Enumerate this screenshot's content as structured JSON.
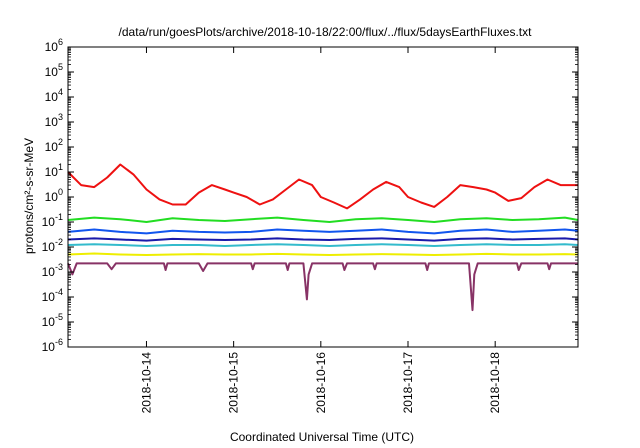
{
  "chart_data": {
    "type": "line",
    "title": "/data/run/goesPlots/archive/2018-10-18/22:00/flux/../flux/5daysEarthFluxes.txt",
    "xlabel": "Coordinated Universal Time (UTC)",
    "ylabel": "protons/cm²-s-sr-MeV",
    "yscale": "log",
    "ylim_exp": [
      -6,
      6
    ],
    "xlim_days": [
      13.1,
      18.95
    ],
    "x_ticks": [
      {
        "day": 14,
        "label": "2018-10-14"
      },
      {
        "day": 15,
        "label": "2018-10-15"
      },
      {
        "day": 16,
        "label": "2018-10-16"
      },
      {
        "day": 17,
        "label": "2018-10-17"
      },
      {
        "day": 18,
        "label": "2018-10-18"
      }
    ],
    "y_ticks": [
      {
        "exp": -6,
        "base": "10",
        "sup": "-6"
      },
      {
        "exp": -5,
        "base": "10",
        "sup": "-5"
      },
      {
        "exp": -4,
        "base": "10",
        "sup": "-4"
      },
      {
        "exp": -3,
        "base": "10",
        "sup": "-3"
      },
      {
        "exp": -2,
        "base": "10",
        "sup": "-2"
      },
      {
        "exp": -1,
        "base": "10",
        "sup": "-1"
      },
      {
        "exp": 0,
        "base": "10",
        "sup": "0"
      },
      {
        "exp": 1,
        "base": "10",
        "sup": "1"
      },
      {
        "exp": 2,
        "base": "10",
        "sup": "2"
      },
      {
        "exp": 3,
        "base": "10",
        "sup": "3"
      },
      {
        "exp": 4,
        "base": "10",
        "sup": "4"
      },
      {
        "exp": 5,
        "base": "10",
        "sup": "5"
      },
      {
        "exp": 6,
        "base": "10",
        "sup": "6"
      }
    ],
    "grid": false,
    "series": [
      {
        "color": "#ee1111",
        "x": [
          13.1,
          13.25,
          13.4,
          13.55,
          13.7,
          13.85,
          14.0,
          14.15,
          14.3,
          14.45,
          14.6,
          14.75,
          14.9,
          15.0,
          15.15,
          15.3,
          15.45,
          15.6,
          15.75,
          15.9,
          16.0,
          16.15,
          16.3,
          16.45,
          16.6,
          16.75,
          16.9,
          17.0,
          17.15,
          17.3,
          17.45,
          17.6,
          17.75,
          17.9,
          18.0,
          18.15,
          18.3,
          18.45,
          18.6,
          18.75,
          18.95
        ],
        "y": [
          10,
          3,
          2.5,
          6,
          20,
          8,
          2,
          0.8,
          0.5,
          0.5,
          1.5,
          3,
          2,
          1.5,
          1,
          0.5,
          0.8,
          2,
          5,
          3,
          1,
          0.6,
          0.35,
          0.8,
          2,
          4,
          2.5,
          1,
          0.6,
          0.4,
          1,
          3,
          2.5,
          2,
          1.5,
          0.7,
          0.9,
          2.5,
          5,
          3,
          3
        ]
      },
      {
        "color": "#22dd22",
        "x": [
          13.1,
          13.4,
          13.7,
          14.0,
          14.3,
          14.6,
          14.9,
          15.2,
          15.5,
          15.8,
          16.1,
          16.4,
          16.7,
          17.0,
          17.3,
          17.6,
          17.9,
          18.2,
          18.5,
          18.8,
          18.95
        ],
        "y": [
          0.12,
          0.15,
          0.13,
          0.1,
          0.14,
          0.12,
          0.11,
          0.13,
          0.15,
          0.12,
          0.1,
          0.13,
          0.14,
          0.12,
          0.1,
          0.13,
          0.14,
          0.12,
          0.13,
          0.15,
          0.12
        ]
      },
      {
        "color": "#1155ee",
        "x": [
          13.1,
          13.4,
          13.7,
          14.0,
          14.3,
          14.6,
          14.9,
          15.2,
          15.5,
          15.8,
          16.1,
          16.4,
          16.7,
          17.0,
          17.3,
          17.6,
          17.9,
          18.2,
          18.5,
          18.8,
          18.95
        ],
        "y": [
          0.04,
          0.05,
          0.04,
          0.035,
          0.045,
          0.04,
          0.038,
          0.04,
          0.05,
          0.045,
          0.04,
          0.045,
          0.05,
          0.04,
          0.035,
          0.045,
          0.05,
          0.04,
          0.045,
          0.05,
          0.045
        ]
      },
      {
        "color": "#1a1aaa",
        "x": [
          13.1,
          13.4,
          13.7,
          14.0,
          14.3,
          14.6,
          14.9,
          15.2,
          15.5,
          15.8,
          16.1,
          16.4,
          16.7,
          17.0,
          17.3,
          17.6,
          17.9,
          18.2,
          18.5,
          18.8,
          18.95
        ],
        "y": [
          0.02,
          0.022,
          0.02,
          0.018,
          0.021,
          0.02,
          0.019,
          0.02,
          0.022,
          0.02,
          0.019,
          0.021,
          0.022,
          0.02,
          0.018,
          0.021,
          0.022,
          0.02,
          0.021,
          0.022,
          0.02
        ]
      },
      {
        "color": "#33bbcc",
        "x": [
          13.1,
          13.4,
          13.7,
          14.0,
          14.3,
          14.6,
          14.9,
          15.2,
          15.5,
          15.8,
          16.1,
          16.4,
          16.7,
          17.0,
          17.3,
          17.6,
          17.9,
          18.2,
          18.5,
          18.8,
          18.95
        ],
        "y": [
          0.012,
          0.013,
          0.012,
          0.011,
          0.012,
          0.012,
          0.011,
          0.012,
          0.013,
          0.012,
          0.011,
          0.012,
          0.013,
          0.012,
          0.011,
          0.012,
          0.013,
          0.012,
          0.012,
          0.013,
          0.012
        ]
      },
      {
        "color": "#eeee00",
        "x": [
          13.1,
          13.4,
          13.7,
          14.0,
          14.3,
          14.6,
          14.9,
          15.2,
          15.5,
          15.8,
          16.1,
          16.4,
          16.7,
          17.0,
          17.3,
          17.6,
          17.9,
          18.2,
          18.5,
          18.8,
          18.95
        ],
        "y": [
          0.005,
          0.0055,
          0.005,
          0.0048,
          0.005,
          0.0052,
          0.005,
          0.005,
          0.0053,
          0.005,
          0.0048,
          0.005,
          0.0052,
          0.005,
          0.0048,
          0.005,
          0.0053,
          0.005,
          0.005,
          0.0052,
          0.005
        ]
      },
      {
        "color": "#883366",
        "x": [
          13.1,
          13.15,
          13.2,
          13.3,
          13.55,
          13.6,
          13.65,
          13.9,
          14.2,
          14.22,
          14.24,
          14.6,
          14.65,
          14.7,
          15.0,
          15.2,
          15.22,
          15.24,
          15.6,
          15.62,
          15.64,
          15.8,
          15.84,
          15.86,
          15.9,
          16.1,
          16.25,
          16.27,
          16.3,
          16.6,
          16.62,
          16.64,
          17.0,
          17.2,
          17.22,
          17.24,
          17.6,
          17.7,
          17.74,
          17.76,
          17.8,
          18.0,
          18.25,
          18.27,
          18.3,
          18.6,
          18.62,
          18.64,
          18.95
        ],
        "y": [
          0.0022,
          0.0008,
          0.0022,
          0.0022,
          0.0022,
          0.0013,
          0.0022,
          0.0022,
          0.0022,
          0.0012,
          0.0022,
          0.0022,
          0.0011,
          0.0022,
          0.0022,
          0.0022,
          0.0013,
          0.0022,
          0.0022,
          0.0012,
          0.0022,
          0.0022,
          8e-05,
          0.0008,
          0.0022,
          0.0022,
          0.0022,
          0.0012,
          0.0022,
          0.0022,
          0.0013,
          0.0022,
          0.0022,
          0.0022,
          0.0012,
          0.0022,
          0.0022,
          0.0022,
          3e-05,
          0.0008,
          0.0022,
          0.0022,
          0.0022,
          0.0012,
          0.0022,
          0.0022,
          0.0013,
          0.0022,
          0.0022
        ]
      }
    ]
  }
}
